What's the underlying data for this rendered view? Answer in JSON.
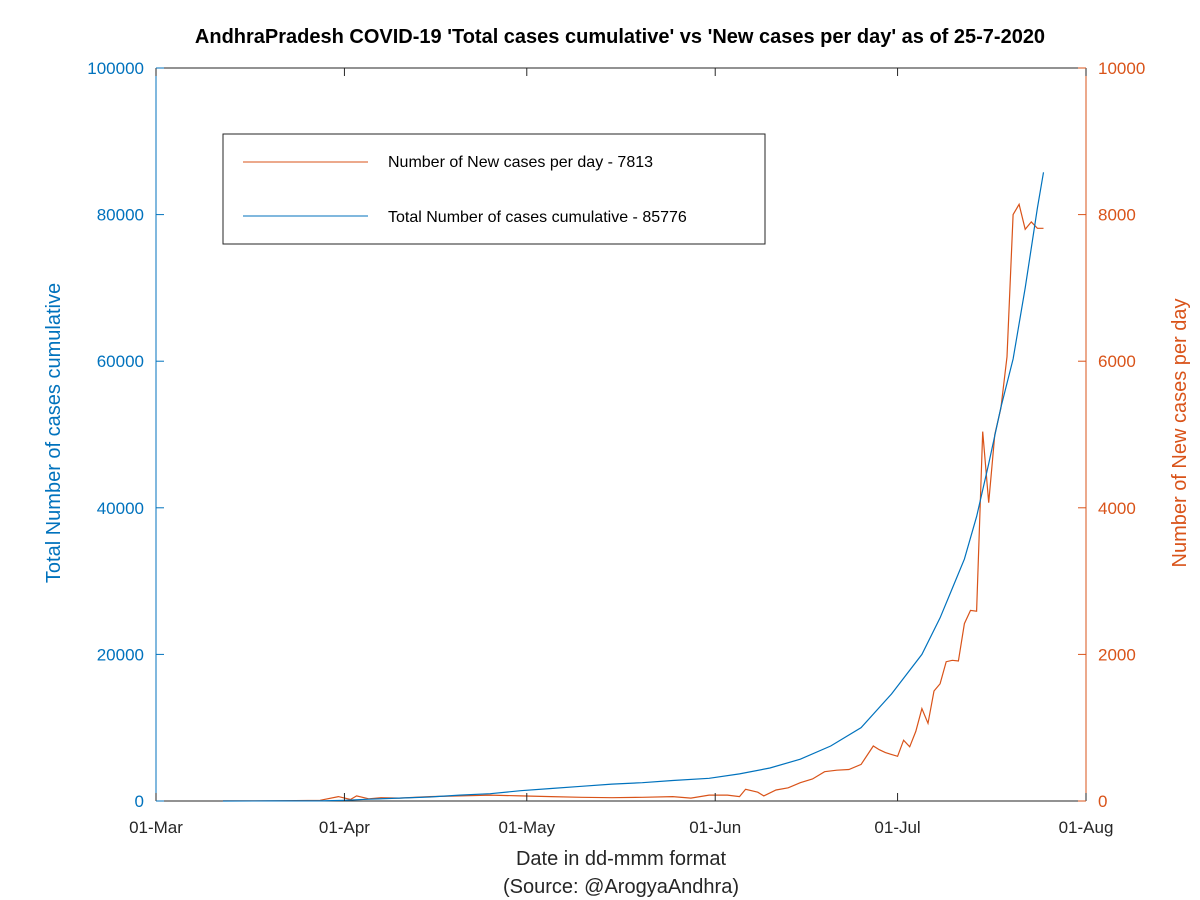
{
  "chart_data": {
    "type": "line",
    "title": "AndhraPradesh COVID-19 'Total cases cumulative' vs 'New cases per day' as of 25-7-2020",
    "xlabel": "Date in dd-mmm format",
    "xlabel_source": "(Source: @ArogyaAndhra)",
    "ylabel_left": "Total Number of cases cumulative",
    "ylabel_right": "Number of New cases per day",
    "x_ticks": [
      "01-Mar",
      "01-Apr",
      "01-May",
      "01-Jun",
      "01-Jul",
      "01-Aug"
    ],
    "x_range": [
      "2020-03-01",
      "2020-08-01"
    ],
    "ylim_left": [
      0,
      100000
    ],
    "ylim_right": [
      0,
      10000
    ],
    "y_ticks_left": [
      "0",
      "20000",
      "40000",
      "60000",
      "80000",
      "100000"
    ],
    "y_ticks_right": [
      "0",
      "2000",
      "4000",
      "6000",
      "8000",
      "10000"
    ],
    "grid": false,
    "legend_position": "top-left",
    "colors": {
      "left_axis": "#0072BD",
      "right_axis": "#D95319",
      "cumulative": "#0072BD",
      "new": "#D95319"
    },
    "series": [
      {
        "name": "Number of New cases per day - 7813",
        "axis": "right",
        "x": [
          "2020-03-12",
          "2020-03-20",
          "2020-03-28",
          "2020-03-31",
          "2020-04-02",
          "2020-04-03",
          "2020-04-05",
          "2020-04-07",
          "2020-04-10",
          "2020-04-15",
          "2020-04-20",
          "2020-04-25",
          "2020-04-30",
          "2020-05-05",
          "2020-05-10",
          "2020-05-15",
          "2020-05-20",
          "2020-05-25",
          "2020-05-28",
          "2020-05-31",
          "2020-06-03",
          "2020-06-05",
          "2020-06-06",
          "2020-06-08",
          "2020-06-09",
          "2020-06-11",
          "2020-06-13",
          "2020-06-15",
          "2020-06-17",
          "2020-06-19",
          "2020-06-21",
          "2020-06-23",
          "2020-06-25",
          "2020-06-27",
          "2020-06-28",
          "2020-06-29",
          "2020-07-01",
          "2020-07-02",
          "2020-07-03",
          "2020-07-04",
          "2020-07-05",
          "2020-07-06",
          "2020-07-07",
          "2020-07-08",
          "2020-07-09",
          "2020-07-10",
          "2020-07-11",
          "2020-07-12",
          "2020-07-13",
          "2020-07-14",
          "2020-07-15",
          "2020-07-16",
          "2020-07-17",
          "2020-07-18",
          "2020-07-19",
          "2020-07-20",
          "2020-07-21",
          "2020-07-22",
          "2020-07-23",
          "2020-07-24",
          "2020-07-25"
        ],
        "values": [
          1,
          2,
          10,
          60,
          20,
          70,
          30,
          45,
          40,
          60,
          70,
          80,
          70,
          60,
          50,
          45,
          50,
          60,
          40,
          80,
          80,
          60,
          160,
          120,
          70,
          150,
          180,
          250,
          300,
          400,
          420,
          430,
          500,
          750,
          700,
          660,
          610,
          830,
          740,
          950,
          1260,
          1060,
          1500,
          1600,
          1900,
          1920,
          1910,
          2420,
          2600,
          2590,
          5040,
          4070,
          5000,
          5360,
          6060,
          8000,
          8140,
          7800,
          7900,
          7813,
          7813
        ]
      },
      {
        "name": "Total Number of cases cumulative - 85776",
        "axis": "left",
        "x": [
          "2020-03-12",
          "2020-03-20",
          "2020-03-28",
          "2020-04-01",
          "2020-04-05",
          "2020-04-10",
          "2020-04-15",
          "2020-04-20",
          "2020-04-25",
          "2020-04-30",
          "2020-05-05",
          "2020-05-10",
          "2020-05-15",
          "2020-05-20",
          "2020-05-25",
          "2020-05-31",
          "2020-06-05",
          "2020-06-10",
          "2020-06-15",
          "2020-06-20",
          "2020-06-25",
          "2020-06-30",
          "2020-07-05",
          "2020-07-08",
          "2020-07-10",
          "2020-07-12",
          "2020-07-14",
          "2020-07-16",
          "2020-07-18",
          "2020-07-20",
          "2020-07-22",
          "2020-07-24",
          "2020-07-25"
        ],
        "values": [
          1,
          10,
          20,
          100,
          250,
          400,
          550,
          800,
          1000,
          1400,
          1700,
          2000,
          2300,
          2500,
          2800,
          3100,
          3700,
          4500,
          5700,
          7500,
          10000,
          14600,
          20000,
          25000,
          29000,
          33000,
          38800,
          46000,
          53700,
          60300,
          70000,
          80900,
          85776
        ]
      }
    ]
  }
}
